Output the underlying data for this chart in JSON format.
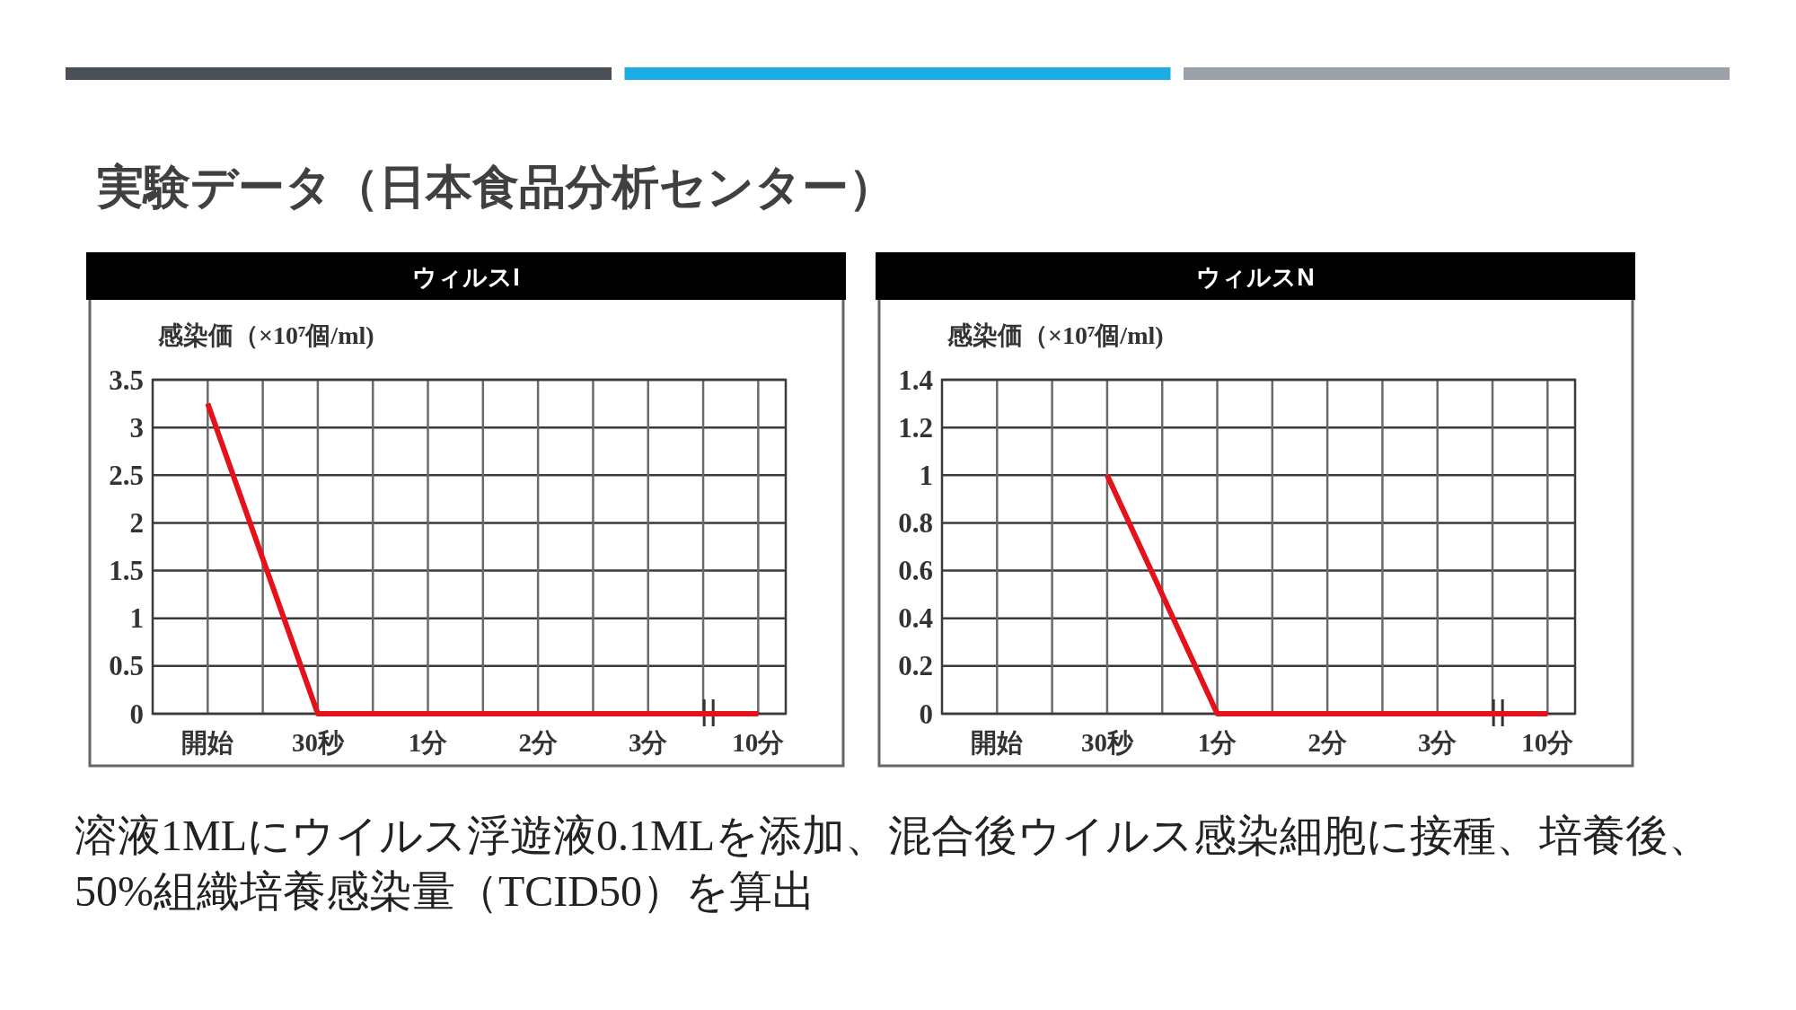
{
  "chart_data": [
    {
      "type": "other",
      "title": "実験データ（日本食品分析センター）",
      "annotations": [
        "溶液1MLにウイルス浮遊液0.1MLを添加、混合後ウイルス感染細胞に接種、培養後、50%組織培養感染量（TCID50）を算出"
      ]
    },
    {
      "type": "line",
      "title": "ウィルスI",
      "ylabel": "感染価（×10⁷個/ml)",
      "categories": [
        "開始",
        "30秒",
        "1分",
        "2分",
        "3分",
        "10分"
      ],
      "series": [
        {
          "color": "#e3121b",
          "values": [
            3.25,
            0,
            0,
            0,
            0,
            0
          ]
        }
      ],
      "ylim": [
        0,
        3.5
      ],
      "yticks": [
        0,
        0.5,
        1,
        1.5,
        2,
        2.5,
        3,
        3.5
      ],
      "grid": true,
      "line_style": "solid"
    },
    {
      "type": "line",
      "title": "ウィルスN",
      "ylabel": "感染価（×10⁷個/ml)",
      "categories": [
        "開始",
        "30秒",
        "1分",
        "2分",
        "3分",
        "10分"
      ],
      "series": [
        {
          "color": "#e3121b",
          "values": [
            null,
            1,
            0,
            0,
            0,
            0
          ]
        }
      ],
      "ylim": [
        0,
        1.4
      ],
      "yticks": [
        0,
        0.2,
        0.4,
        0.6,
        0.8,
        1,
        1.2,
        1.4
      ],
      "grid": true,
      "line_style": "solid"
    }
  ]
}
